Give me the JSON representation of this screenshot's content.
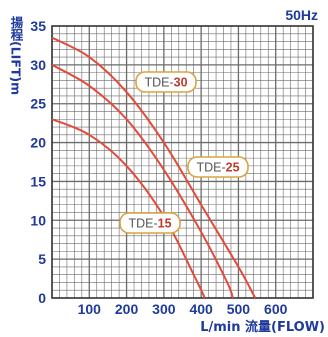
{
  "chart_data": {
    "type": "line",
    "frequency_label": "50Hz",
    "ylabel": "揚程(LIFT)m",
    "xlabel": "L/min 流量(FLOW)",
    "x_ticks": [
      100,
      200,
      300,
      400,
      500,
      600
    ],
    "y_ticks": [
      0,
      5,
      10,
      15,
      20,
      25,
      30,
      35
    ],
    "xlim": [
      0,
      700
    ],
    "ylim": [
      0,
      35
    ],
    "grid": true,
    "colors": {
      "grid": "#6b6b6b",
      "axis_text": "#1e3a9b",
      "curve": "#e24a3b",
      "label_border": "#d9a441"
    },
    "series": [
      {
        "name_prefix": "TDE-",
        "name_number": "30",
        "points": [
          [
            0,
            33.5
          ],
          [
            100,
            31
          ],
          [
            200,
            26.5
          ],
          [
            300,
            20
          ],
          [
            400,
            12
          ],
          [
            500,
            4
          ],
          [
            545,
            0
          ]
        ]
      },
      {
        "name_prefix": "TDE-",
        "name_number": "25",
        "points": [
          [
            0,
            30
          ],
          [
            100,
            27.3
          ],
          [
            200,
            23
          ],
          [
            300,
            16.5
          ],
          [
            400,
            8.5
          ],
          [
            470,
            2
          ],
          [
            485,
            0
          ]
        ]
      },
      {
        "name_prefix": "TDE-",
        "name_number": "15",
        "points": [
          [
            0,
            23
          ],
          [
            100,
            21
          ],
          [
            200,
            17
          ],
          [
            300,
            10.5
          ],
          [
            380,
            3
          ],
          [
            410,
            0
          ]
        ]
      }
    ]
  }
}
